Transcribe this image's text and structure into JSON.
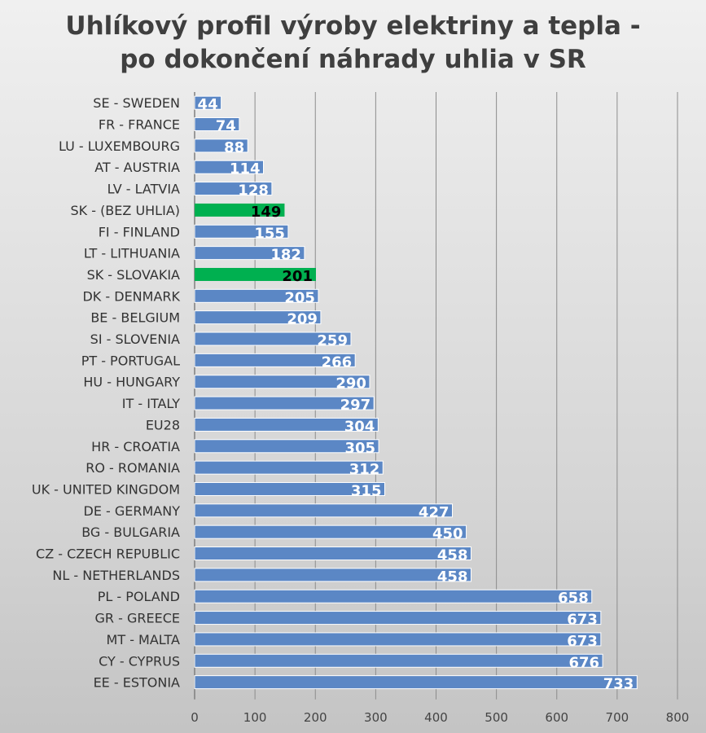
{
  "chart_data": {
    "type": "bar",
    "orientation": "horizontal",
    "title_lines": [
      "Uhlíkový profil výroby elektriny a tepla -",
      "po dokončení náhrady uhlia v SR"
    ],
    "categories": [
      "SE - SWEDEN",
      "FR - FRANCE",
      "LU - LUXEMBOURG",
      "AT - AUSTRIA",
      "LV - LATVIA",
      "SK - (BEZ UHLIA)",
      "FI - FINLAND",
      "LT - LITHUANIA",
      "SK - SLOVAKIA",
      "DK - DENMARK",
      "BE - BELGIUM",
      "SI - SLOVENIA",
      "PT - PORTUGAL",
      "HU - HUNGARY",
      "IT - ITALY",
      "EU28",
      "HR - CROATIA",
      "RO - ROMANIA",
      "UK - UNITED KINGDOM",
      "DE - GERMANY",
      "BG - BULGARIA",
      "CZ - CZECH REPUBLIC",
      "NL - NETHERLANDS",
      "PL - POLAND",
      "GR - GREECE",
      "MT - MALTA",
      "CY - CYPRUS",
      "EE - ESTONIA"
    ],
    "values": [
      44,
      74,
      88,
      114,
      128,
      149,
      155,
      182,
      201,
      205,
      209,
      259,
      266,
      290,
      297,
      304,
      305,
      312,
      315,
      427,
      450,
      458,
      458,
      658,
      673,
      673,
      676,
      733
    ],
    "highlighted": [
      "SK - (BEZ UHLIA)",
      "SK - SLOVAKIA"
    ],
    "xlim": [
      0,
      800
    ],
    "xticks": [
      0,
      100,
      200,
      300,
      400,
      500,
      600,
      700,
      800
    ],
    "grid": true,
    "colors": {
      "bar": "#5b87c5",
      "highlight": "#00b050",
      "label": "#ffffff",
      "highlight_label": "#000000",
      "grid": "#8c8c8c"
    }
  }
}
